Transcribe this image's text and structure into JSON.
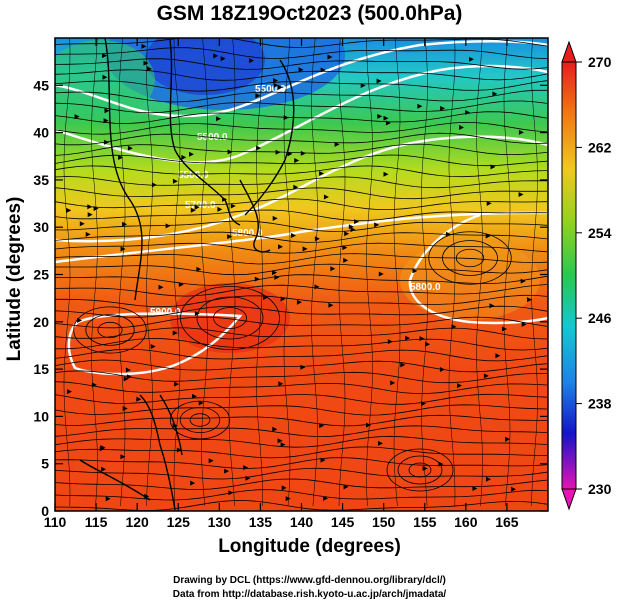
{
  "title": "GSM 18Z19Oct2023 (500.0hPa)",
  "xlabel": "Longitude (degrees)",
  "ylabel": "Latitude  (degrees)",
  "credit_line1": "Drawing by DCL (https://www.gfd-dennou.org/library/dcl/)",
  "credit_line2": "Data from http://database.rish.kyoto-u.ac.jp/arch/jmadata/",
  "chart_data": {
    "type": "heatmap",
    "variable": "temperature with wind streamlines",
    "x_ticks": [
      "110",
      "115",
      "120",
      "125",
      "130",
      "135",
      "140",
      "145",
      "150",
      "155",
      "160",
      "165"
    ],
    "y_ticks": [
      "0",
      "5",
      "10",
      "15",
      "20",
      "25",
      "30",
      "35",
      "40",
      "45"
    ],
    "xlim": [
      110,
      170
    ],
    "ylim": [
      0,
      50
    ],
    "colorbar_ticks": [
      "270",
      "262",
      "254",
      "246",
      "238",
      "230"
    ],
    "colorbar_range": [
      230,
      270
    ],
    "contour_labels": [
      "5500.0",
      "5700.0",
      "5800.0",
      "5900.0",
      "5800.0",
      "5800.0",
      "5800.0"
    ]
  }
}
